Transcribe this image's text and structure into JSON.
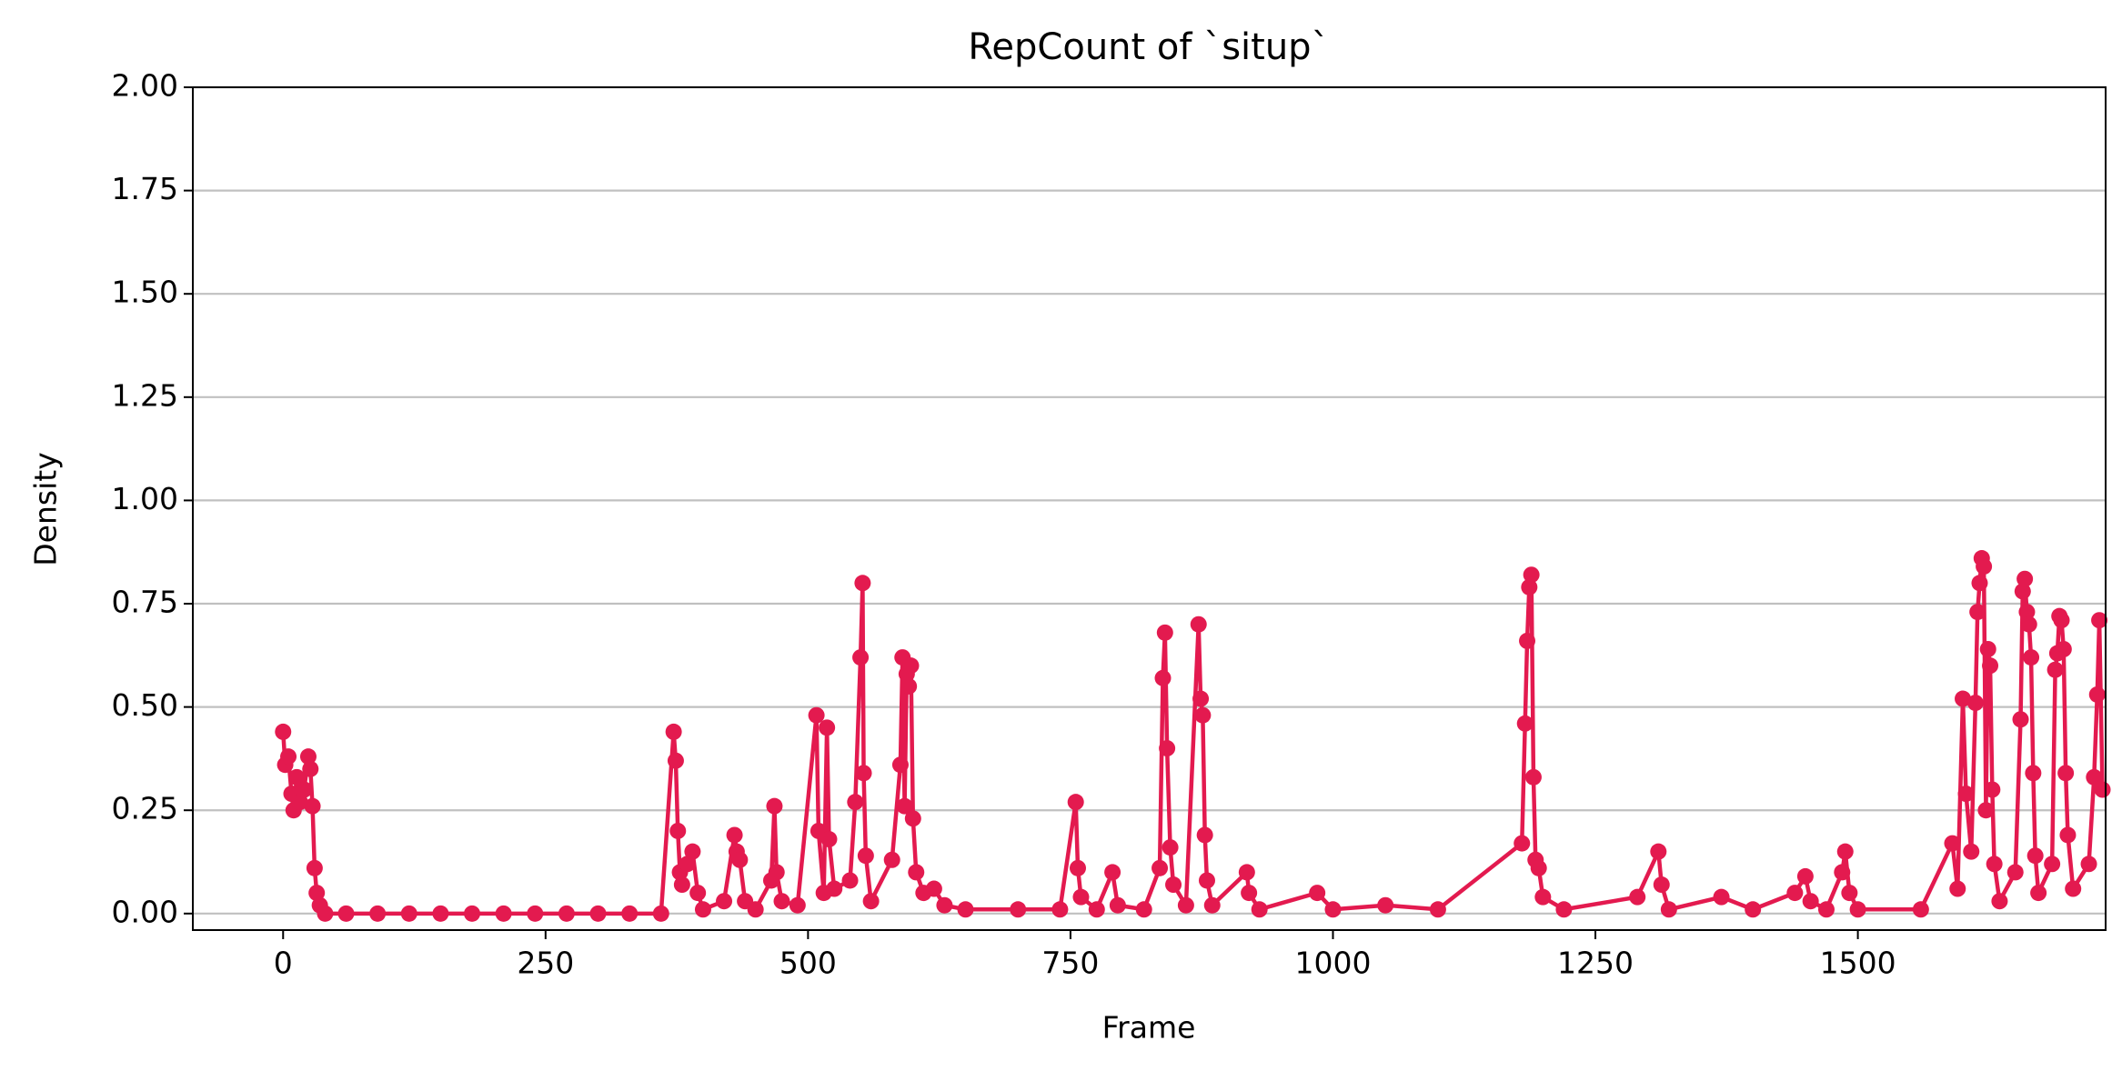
{
  "chart_data": {
    "type": "line",
    "title": "RepCount of `situp`",
    "xlabel": "Frame",
    "ylabel": "Density",
    "xlim": [
      -86,
      1736
    ],
    "ylim": [
      -0.04,
      2.0
    ],
    "xticks": [
      0,
      250,
      500,
      750,
      1000,
      1250,
      1500
    ],
    "yticks": [
      {
        "value": 0,
        "label": "0.00"
      },
      {
        "value": 0.25,
        "label": "0.25"
      },
      {
        "value": 0.5,
        "label": "0.50"
      },
      {
        "value": 0.75,
        "label": "0.75"
      },
      {
        "value": 1.0,
        "label": "1.00"
      },
      {
        "value": 1.25,
        "label": "1.25"
      },
      {
        "value": 1.5,
        "label": "1.50"
      },
      {
        "value": 1.75,
        "label": "1.75"
      },
      {
        "value": 2.0,
        "label": "2.00"
      }
    ],
    "grid": "y",
    "markers": true,
    "series": [
      {
        "color": "#e31a4f",
        "x": [
          0,
          2,
          5,
          8,
          10,
          13,
          16,
          20,
          24,
          26,
          28,
          30,
          32,
          35,
          40,
          60,
          90,
          120,
          150,
          180,
          210,
          240,
          270,
          300,
          330,
          360,
          372,
          374,
          376,
          378,
          380,
          385,
          390,
          395,
          400,
          420,
          430,
          432,
          435,
          440,
          450,
          465,
          468,
          470,
          475,
          490,
          508,
          510,
          515,
          518,
          520,
          525,
          540,
          545,
          550,
          552,
          553,
          555,
          560,
          580,
          588,
          590,
          592,
          594,
          596,
          598,
          600,
          603,
          610,
          620,
          630,
          650,
          700,
          740,
          755,
          757,
          760,
          775,
          790,
          795,
          820,
          835,
          838,
          840,
          842,
          845,
          848,
          860,
          872,
          874,
          876,
          878,
          880,
          885,
          918,
          920,
          930,
          985,
          1000,
          1050,
          1100,
          1180,
          1183,
          1185,
          1187,
          1189,
          1191,
          1193,
          1196,
          1200,
          1220,
          1290,
          1310,
          1313,
          1320,
          1370,
          1400,
          1440,
          1450,
          1455,
          1470,
          1485,
          1488,
          1492,
          1500,
          1560,
          1590,
          1595,
          1600,
          1603,
          1608,
          1612,
          1614,
          1616,
          1618,
          1620,
          1622,
          1624,
          1626,
          1628,
          1630,
          1635,
          1650,
          1655,
          1657,
          1659,
          1661,
          1663,
          1665,
          1667,
          1669,
          1672,
          1685,
          1688,
          1690,
          1692,
          1694,
          1696,
          1698,
          1700,
          1705,
          1720,
          1725,
          1728,
          1730,
          1733
        ],
        "values": [
          0.44,
          0.36,
          0.38,
          0.29,
          0.25,
          0.33,
          0.27,
          0.3,
          0.38,
          0.35,
          0.26,
          0.11,
          0.05,
          0.02,
          0,
          0,
          0,
          0,
          0,
          0,
          0,
          0,
          0,
          0,
          0,
          0,
          0.44,
          0.37,
          0.2,
          0.1,
          0.07,
          0.12,
          0.15,
          0.05,
          0.01,
          0.03,
          0.19,
          0.15,
          0.13,
          0.03,
          0.01,
          0.08,
          0.26,
          0.1,
          0.03,
          0.02,
          0.48,
          0.2,
          0.05,
          0.45,
          0.18,
          0.06,
          0.08,
          0.27,
          0.62,
          0.8,
          0.34,
          0.14,
          0.03,
          0.13,
          0.36,
          0.62,
          0.26,
          0.58,
          0.55,
          0.6,
          0.23,
          0.1,
          0.05,
          0.06,
          0.02,
          0.01,
          0.01,
          0.01,
          0.27,
          0.11,
          0.04,
          0.01,
          0.1,
          0.02,
          0.01,
          0.11,
          0.57,
          0.68,
          0.4,
          0.16,
          0.07,
          0.02,
          0.7,
          0.52,
          0.48,
          0.19,
          0.08,
          0.02,
          0.1,
          0.05,
          0.01,
          0.05,
          0.01,
          0.02,
          0.01,
          0.17,
          0.46,
          0.66,
          0.79,
          0.82,
          0.33,
          0.13,
          0.11,
          0.04,
          0.01,
          0.04,
          0.15,
          0.07,
          0.01,
          0.04,
          0.01,
          0.05,
          0.09,
          0.03,
          0.01,
          0.1,
          0.15,
          0.05,
          0.01,
          0.01,
          0.17,
          0.06,
          0.52,
          0.29,
          0.15,
          0.51,
          0.73,
          0.8,
          0.86,
          0.84,
          0.25,
          0.64,
          0.6,
          0.3,
          0.12,
          0.03,
          0.1,
          0.47,
          0.78,
          0.81,
          0.73,
          0.7,
          0.62,
          0.34,
          0.14,
          0.05,
          0.12,
          0.59,
          0.63,
          0.72,
          0.71,
          0.64,
          0.34,
          0.19,
          0.06,
          0.12,
          0.33,
          0.53,
          0.71,
          0.3
        ]
      }
    ]
  }
}
